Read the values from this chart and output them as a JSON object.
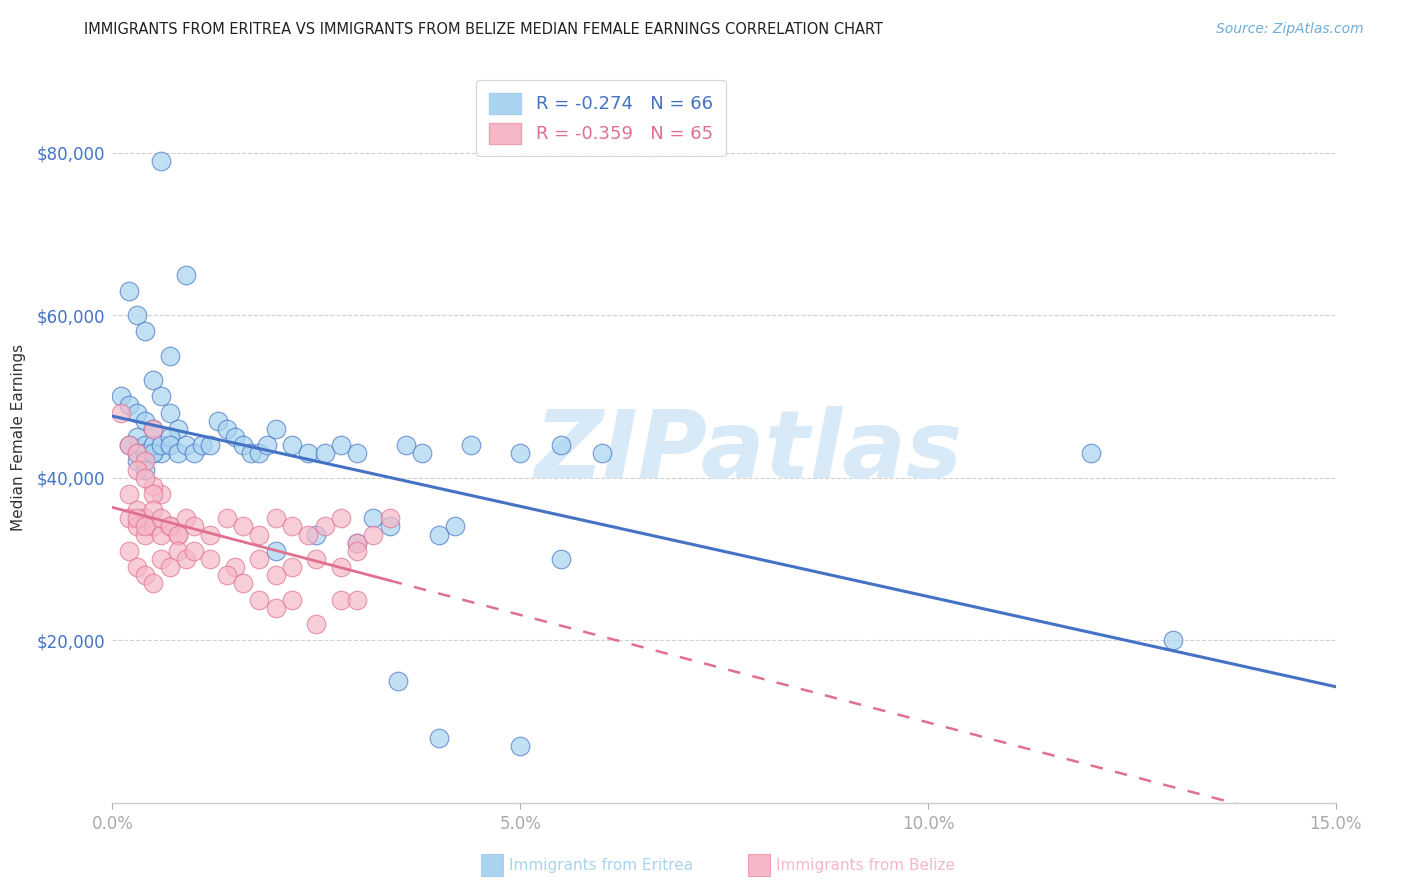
{
  "title": "IMMIGRANTS FROM ERITREA VS IMMIGRANTS FROM BELIZE MEDIAN FEMALE EARNINGS CORRELATION CHART",
  "source": "Source: ZipAtlas.com",
  "xlabel_blue": "Immigrants from Eritrea",
  "xlabel_pink": "Immigrants from Belize",
  "ylabel": "Median Female Earnings",
  "legend_blue_r": "-0.274",
  "legend_blue_n": "66",
  "legend_pink_r": "-0.359",
  "legend_pink_n": "65",
  "xlim": [
    0.0,
    0.15
  ],
  "ylim": [
    0,
    90000
  ],
  "yticks": [
    20000,
    40000,
    60000,
    80000
  ],
  "ytick_labels": [
    "$20,000",
    "$40,000",
    "$60,000",
    "$80,000"
  ],
  "xticks": [
    0.0,
    0.05,
    0.1,
    0.15
  ],
  "xtick_labels": [
    "0.0%",
    "5.0%",
    "10.0%",
    "15.0%"
  ],
  "blue_scatter_color": "#a8d4f0",
  "pink_scatter_color": "#f5b8c8",
  "blue_line_color": "#4472c4",
  "pink_line_color": "#e07090",
  "grid_color": "#cccccc",
  "title_color": "#222222",
  "tick_label_color": "#4472c4",
  "watermark_color": "#d8eaf8",
  "blue_x": [
    0.006,
    0.002,
    0.003,
    0.004,
    0.001,
    0.002,
    0.003,
    0.004,
    0.005,
    0.003,
    0.004,
    0.005,
    0.006,
    0.007,
    0.005,
    0.006,
    0.007,
    0.008,
    0.009,
    0.002,
    0.003,
    0.003,
    0.004,
    0.004,
    0.005,
    0.005,
    0.006,
    0.007,
    0.007,
    0.008,
    0.009,
    0.01,
    0.011,
    0.012,
    0.013,
    0.014,
    0.015,
    0.016,
    0.017,
    0.018,
    0.019,
    0.02,
    0.022,
    0.024,
    0.026,
    0.028,
    0.03,
    0.032,
    0.034,
    0.036,
    0.038,
    0.04,
    0.042,
    0.044,
    0.05,
    0.055,
    0.06,
    0.02,
    0.025,
    0.03,
    0.12,
    0.13,
    0.035,
    0.04,
    0.05,
    0.055
  ],
  "blue_y": [
    79000,
    63000,
    60000,
    58000,
    50000,
    49000,
    48000,
    47000,
    46000,
    45000,
    44000,
    43000,
    43000,
    55000,
    52000,
    50000,
    48000,
    46000,
    65000,
    44000,
    43000,
    42000,
    43000,
    41000,
    44000,
    43000,
    44000,
    45000,
    44000,
    43000,
    44000,
    43000,
    44000,
    44000,
    47000,
    46000,
    45000,
    44000,
    43000,
    43000,
    44000,
    46000,
    44000,
    43000,
    43000,
    44000,
    43000,
    35000,
    34000,
    44000,
    43000,
    33000,
    34000,
    44000,
    43000,
    44000,
    43000,
    31000,
    33000,
    32000,
    43000,
    20000,
    15000,
    8000,
    7000,
    30000
  ],
  "pink_x": [
    0.001,
    0.002,
    0.003,
    0.004,
    0.005,
    0.006,
    0.002,
    0.003,
    0.004,
    0.005,
    0.003,
    0.004,
    0.005,
    0.002,
    0.003,
    0.004,
    0.005,
    0.006,
    0.007,
    0.008,
    0.003,
    0.004,
    0.005,
    0.006,
    0.007,
    0.008,
    0.009,
    0.01,
    0.012,
    0.014,
    0.016,
    0.018,
    0.02,
    0.022,
    0.024,
    0.026,
    0.028,
    0.03,
    0.032,
    0.034,
    0.002,
    0.003,
    0.004,
    0.005,
    0.006,
    0.007,
    0.008,
    0.009,
    0.01,
    0.012,
    0.015,
    0.018,
    0.02,
    0.022,
    0.025,
    0.028,
    0.03,
    0.014,
    0.016,
    0.018,
    0.02,
    0.022,
    0.025,
    0.028,
    0.03
  ],
  "pink_y": [
    48000,
    44000,
    43000,
    42000,
    46000,
    38000,
    38000,
    36000,
    35000,
    39000,
    41000,
    40000,
    38000,
    35000,
    34000,
    33000,
    34000,
    33000,
    34000,
    33000,
    35000,
    34000,
    36000,
    35000,
    34000,
    33000,
    35000,
    34000,
    33000,
    35000,
    34000,
    33000,
    35000,
    34000,
    33000,
    34000,
    35000,
    32000,
    33000,
    35000,
    31000,
    29000,
    28000,
    27000,
    30000,
    29000,
    31000,
    30000,
    31000,
    30000,
    29000,
    30000,
    28000,
    29000,
    30000,
    29000,
    31000,
    28000,
    27000,
    25000,
    24000,
    25000,
    22000,
    25000,
    25000
  ]
}
